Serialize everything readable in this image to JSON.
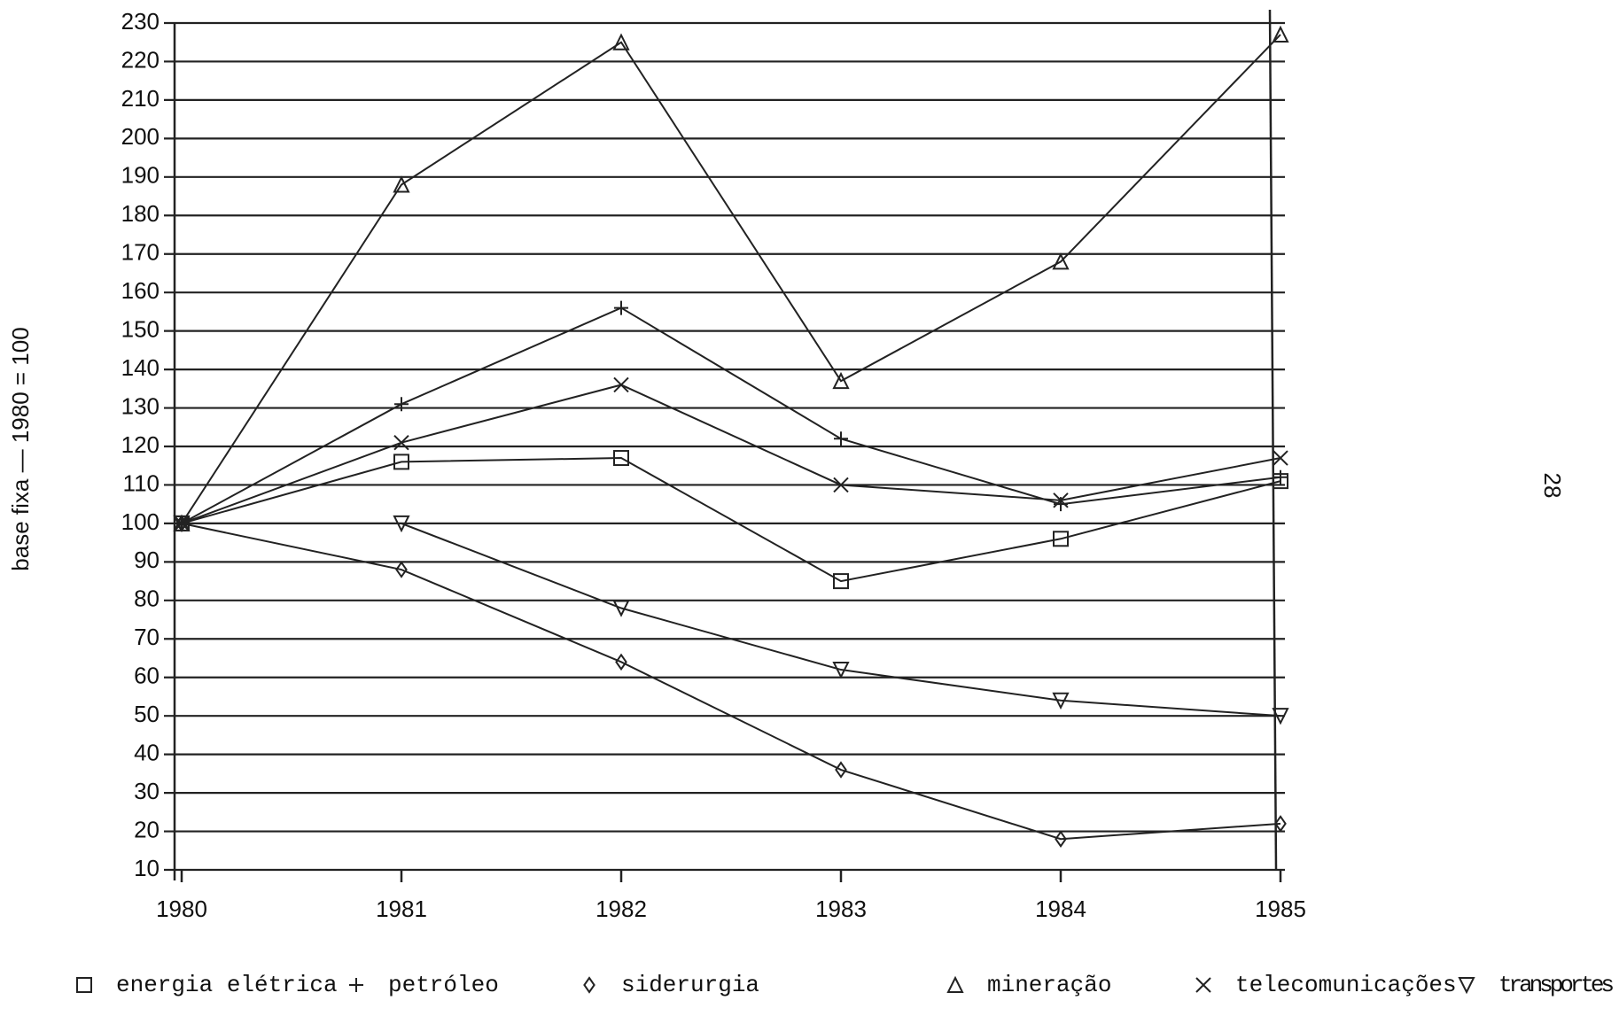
{
  "chart_data": {
    "type": "line",
    "y_label": "base fixa — 1980 = 100",
    "page_number": "28",
    "x": [
      1980,
      1981,
      1982,
      1983,
      1984,
      1985
    ],
    "xlim": [
      1980,
      1985
    ],
    "xticks": [
      1980,
      1981,
      1982,
      1983,
      1984,
      1985
    ],
    "ylim": [
      10,
      230
    ],
    "yticks": [
      10,
      20,
      30,
      40,
      50,
      60,
      70,
      80,
      90,
      100,
      110,
      120,
      130,
      140,
      150,
      160,
      170,
      180,
      190,
      200,
      210,
      220,
      230
    ],
    "grid": true,
    "legend": "bottom",
    "series": [
      {
        "name": "energia elétrica",
        "color": "#222222",
        "marker": "square",
        "values": [
          100,
          116,
          117,
          85,
          96,
          111
        ]
      },
      {
        "name": "petróleo",
        "color": "#222222",
        "marker": "plus",
        "values": [
          100,
          131,
          156,
          122,
          105,
          112
        ]
      },
      {
        "name": "siderurgia",
        "color": "#222222",
        "marker": "diamond",
        "values": [
          100,
          88,
          64,
          36,
          18,
          22
        ]
      },
      {
        "name": "mineração",
        "color": "#222222",
        "marker": "triangle",
        "values": [
          100,
          188,
          225,
          137,
          168,
          227
        ]
      },
      {
        "name": "telecomunicações",
        "color": "#222222",
        "marker": "x",
        "values": [
          100,
          121,
          136,
          110,
          106,
          117
        ]
      },
      {
        "name": "transportes",
        "color": "#222222",
        "marker": "triangle-down",
        "values": [
          100,
          100,
          78,
          62,
          54,
          50
        ]
      }
    ]
  }
}
